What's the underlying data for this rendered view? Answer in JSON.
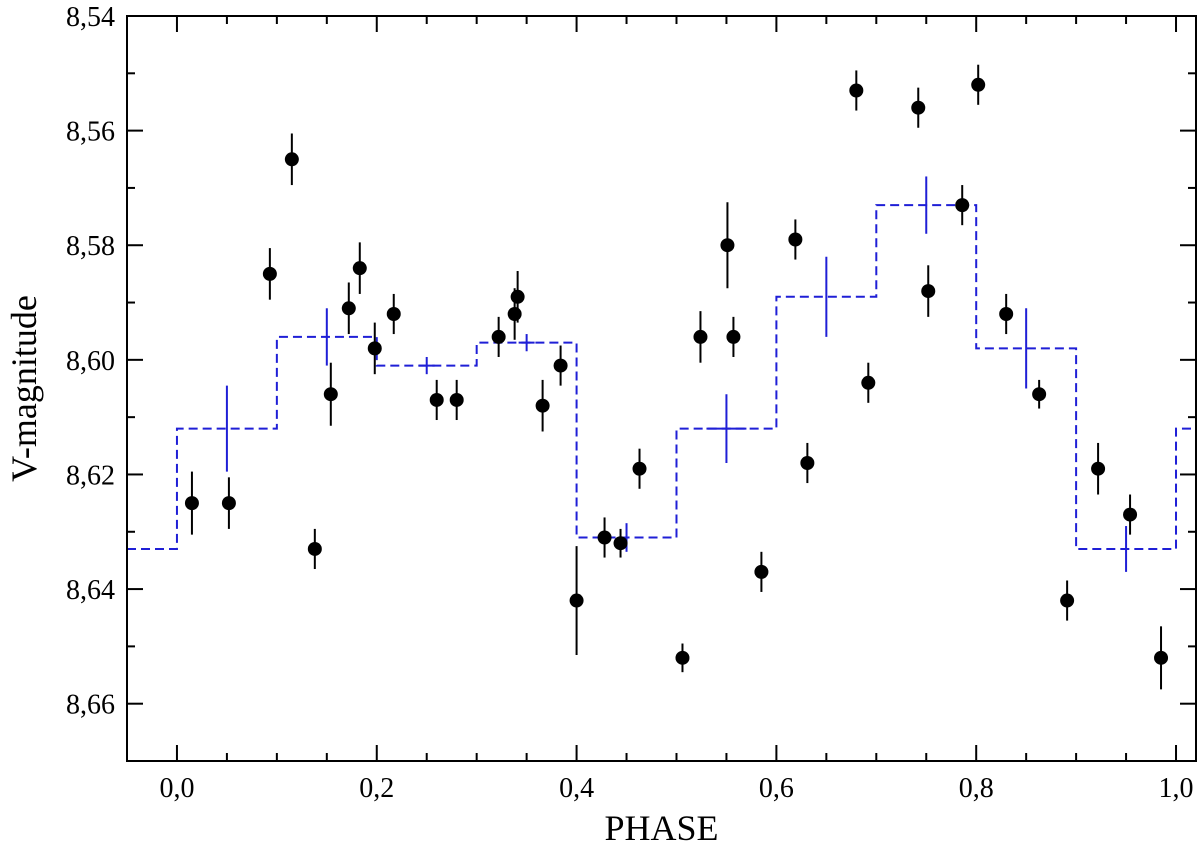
{
  "chart_data": {
    "type": "scatter",
    "title": "",
    "xlabel": "PHASE",
    "ylabel": "V-magnitude",
    "xlim": [
      -0.05,
      1.02
    ],
    "ylim": [
      8.54,
      8.67
    ],
    "y_inverted": true,
    "grid": false,
    "legend": "none",
    "x_ticks": [
      0.0,
      0.2,
      0.4,
      0.6,
      0.8,
      1.0
    ],
    "x_tick_labels": [
      "0,0",
      "0,2",
      "0,4",
      "0,6",
      "0,8",
      "1,0"
    ],
    "y_ticks": [
      8.54,
      8.56,
      8.58,
      8.6,
      8.62,
      8.64,
      8.66
    ],
    "y_tick_labels": [
      "8,54",
      "8,56",
      "8,58",
      "8,60",
      "8,62",
      "8,64",
      "8,66"
    ],
    "colors": {
      "points": "#000000",
      "binned": "#1f1fd6"
    },
    "series": [
      {
        "marker": "filled-circle",
        "points": [
          {
            "x": 0.015,
            "y": 8.625,
            "err": 0.0055
          },
          {
            "x": 0.052,
            "y": 8.625,
            "err": 0.0045
          },
          {
            "x": 0.093,
            "y": 8.585,
            "err": 0.0045
          },
          {
            "x": 0.115,
            "y": 8.565,
            "err": 0.0045
          },
          {
            "x": 0.138,
            "y": 8.633,
            "err": 0.0035
          },
          {
            "x": 0.154,
            "y": 8.606,
            "err": 0.0055
          },
          {
            "x": 0.172,
            "y": 8.591,
            "err": 0.0045
          },
          {
            "x": 0.183,
            "y": 8.584,
            "err": 0.0045
          },
          {
            "x": 0.198,
            "y": 8.598,
            "err": 0.0045
          },
          {
            "x": 0.217,
            "y": 8.592,
            "err": 0.0035
          },
          {
            "x": 0.26,
            "y": 8.607,
            "err": 0.0035
          },
          {
            "x": 0.28,
            "y": 8.607,
            "err": 0.0035
          },
          {
            "x": 0.322,
            "y": 8.596,
            "err": 0.0035
          },
          {
            "x": 0.338,
            "y": 8.592,
            "err": 0.0045
          },
          {
            "x": 0.341,
            "y": 8.589,
            "err": 0.0045
          },
          {
            "x": 0.366,
            "y": 8.608,
            "err": 0.0045
          },
          {
            "x": 0.384,
            "y": 8.601,
            "err": 0.0035
          },
          {
            "x": 0.4,
            "y": 8.642,
            "err": 0.0095
          },
          {
            "x": 0.428,
            "y": 8.631,
            "err": 0.0035
          },
          {
            "x": 0.444,
            "y": 8.632,
            "err": 0.0025
          },
          {
            "x": 0.463,
            "y": 8.619,
            "err": 0.0035
          },
          {
            "x": 0.506,
            "y": 8.652,
            "err": 0.0025
          },
          {
            "x": 0.524,
            "y": 8.596,
            "err": 0.0045
          },
          {
            "x": 0.551,
            "y": 8.58,
            "err": 0.0075
          },
          {
            "x": 0.557,
            "y": 8.596,
            "err": 0.0035
          },
          {
            "x": 0.585,
            "y": 8.637,
            "err": 0.0035
          },
          {
            "x": 0.619,
            "y": 8.579,
            "err": 0.0035
          },
          {
            "x": 0.631,
            "y": 8.618,
            "err": 0.0035
          },
          {
            "x": 0.68,
            "y": 8.553,
            "err": 0.0035
          },
          {
            "x": 0.692,
            "y": 8.604,
            "err": 0.0035
          },
          {
            "x": 0.742,
            "y": 8.556,
            "err": 0.0035
          },
          {
            "x": 0.752,
            "y": 8.588,
            "err": 0.0045
          },
          {
            "x": 0.786,
            "y": 8.573,
            "err": 0.0035
          },
          {
            "x": 0.802,
            "y": 8.552,
            "err": 0.0035
          },
          {
            "x": 0.83,
            "y": 8.592,
            "err": 0.0035
          },
          {
            "x": 0.863,
            "y": 8.606,
            "err": 0.0025
          },
          {
            "x": 0.891,
            "y": 8.642,
            "err": 0.0035
          },
          {
            "x": 0.922,
            "y": 8.619,
            "err": 0.0045
          },
          {
            "x": 0.954,
            "y": 8.627,
            "err": 0.0035
          },
          {
            "x": 0.985,
            "y": 8.652,
            "err": 0.0055
          }
        ]
      },
      {
        "marker": "dashed-step",
        "steps": [
          {
            "x0": -0.05,
            "x1": 0.0,
            "y": 8.633
          },
          {
            "x0": 0.0,
            "x1": 0.1,
            "y": 8.612
          },
          {
            "x0": 0.1,
            "x1": 0.2,
            "y": 8.596
          },
          {
            "x0": 0.2,
            "x1": 0.3,
            "y": 8.601
          },
          {
            "x0": 0.3,
            "x1": 0.4,
            "y": 8.597
          },
          {
            "x0": 0.4,
            "x1": 0.5,
            "y": 8.631
          },
          {
            "x0": 0.5,
            "x1": 0.6,
            "y": 8.612
          },
          {
            "x0": 0.6,
            "x1": 0.7,
            "y": 8.589
          },
          {
            "x0": 0.7,
            "x1": 0.8,
            "y": 8.573
          },
          {
            "x0": 0.8,
            "x1": 0.9,
            "y": 8.598
          },
          {
            "x0": 0.9,
            "x1": 1.0,
            "y": 8.633
          },
          {
            "x0": 1.0,
            "x1": 1.02,
            "y": 8.612
          }
        ],
        "bin_markers": [
          {
            "x": 0.05,
            "y": 8.612,
            "err": 0.0075,
            "xerr": 0
          },
          {
            "x": 0.15,
            "y": 8.596,
            "err": 0.005,
            "xerr": 0
          },
          {
            "x": 0.25,
            "y": 8.601,
            "err": 0.0015,
            "xerr": 0.008
          },
          {
            "x": 0.35,
            "y": 8.597,
            "err": 0.0015,
            "xerr": 0.008
          },
          {
            "x": 0.45,
            "y": 8.631,
            "err": 0.0025,
            "xerr": 0
          },
          {
            "x": 0.55,
            "y": 8.612,
            "err": 0.006,
            "xerr": 0.02
          },
          {
            "x": 0.65,
            "y": 8.589,
            "err": 0.007,
            "xerr": 0
          },
          {
            "x": 0.75,
            "y": 8.573,
            "err": 0.005,
            "xerr": 0
          },
          {
            "x": 0.85,
            "y": 8.598,
            "err": 0.007,
            "xerr": 0
          },
          {
            "x": 0.95,
            "y": 8.633,
            "err": 0.004,
            "xerr": 0
          }
        ]
      }
    ]
  }
}
